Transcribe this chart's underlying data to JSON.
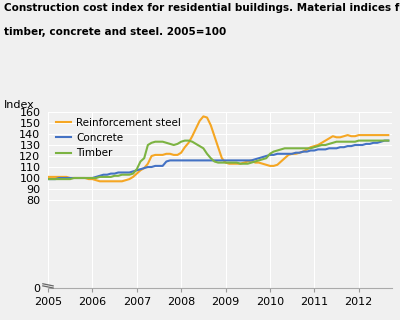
{
  "title_line1": "Construction cost index for residential buildings. Material indices for",
  "title_line2": "timber, concrete and steel. 2005=100",
  "ylabel": "Index",
  "background_color": "#f0f0f0",
  "plot_bg_color": "#f0f0f0",
  "steel_color": "#f5a623",
  "concrete_color": "#4472c4",
  "timber_color": "#7cb342",
  "ylim": [
    0,
    160
  ],
  "xlim": [
    2005.0,
    2012.75
  ],
  "steel": {
    "x": [
      2005.0,
      2005.083,
      2005.167,
      2005.25,
      2005.333,
      2005.417,
      2005.5,
      2005.583,
      2005.667,
      2005.75,
      2005.833,
      2005.917,
      2006.0,
      2006.083,
      2006.167,
      2006.25,
      2006.333,
      2006.417,
      2006.5,
      2006.583,
      2006.667,
      2006.75,
      2006.833,
      2006.917,
      2007.0,
      2007.083,
      2007.167,
      2007.25,
      2007.333,
      2007.417,
      2007.5,
      2007.583,
      2007.667,
      2007.75,
      2007.833,
      2007.917,
      2008.0,
      2008.083,
      2008.167,
      2008.25,
      2008.333,
      2008.417,
      2008.5,
      2008.583,
      2008.667,
      2008.75,
      2008.833,
      2008.917,
      2009.0,
      2009.083,
      2009.167,
      2009.25,
      2009.333,
      2009.417,
      2009.5,
      2009.583,
      2009.667,
      2009.75,
      2009.833,
      2009.917,
      2010.0,
      2010.083,
      2010.167,
      2010.25,
      2010.333,
      2010.417,
      2010.5,
      2010.583,
      2010.667,
      2010.75,
      2010.833,
      2010.917,
      2011.0,
      2011.083,
      2011.167,
      2011.25,
      2011.333,
      2011.417,
      2011.5,
      2011.583,
      2011.667,
      2011.75,
      2011.833,
      2011.917,
      2012.0,
      2012.083,
      2012.167,
      2012.25,
      2012.333,
      2012.417,
      2012.5,
      2012.583,
      2012.667
    ],
    "y": [
      101,
      101,
      101,
      101,
      101,
      101,
      100,
      100,
      100,
      100,
      100,
      99,
      99,
      98,
      97,
      97,
      97,
      97,
      97,
      97,
      97,
      98,
      99,
      101,
      104,
      107,
      109,
      113,
      120,
      121,
      121,
      121,
      122,
      122,
      121,
      121,
      123,
      128,
      132,
      138,
      145,
      152,
      156,
      155,
      148,
      138,
      128,
      118,
      114,
      113,
      113,
      113,
      113,
      114,
      115,
      116,
      114,
      114,
      113,
      112,
      111,
      111,
      112,
      115,
      118,
      121,
      122,
      122,
      123,
      124,
      126,
      128,
      129,
      130,
      132,
      134,
      136,
      138,
      137,
      137,
      138,
      139,
      138,
      138,
      139,
      139,
      139,
      139,
      139,
      139,
      139,
      139,
      139
    ]
  },
  "concrete": {
    "x": [
      2005.0,
      2005.083,
      2005.167,
      2005.25,
      2005.333,
      2005.417,
      2005.5,
      2005.583,
      2005.667,
      2005.75,
      2005.833,
      2005.917,
      2006.0,
      2006.083,
      2006.167,
      2006.25,
      2006.333,
      2006.417,
      2006.5,
      2006.583,
      2006.667,
      2006.75,
      2006.833,
      2006.917,
      2007.0,
      2007.083,
      2007.167,
      2007.25,
      2007.333,
      2007.417,
      2007.5,
      2007.583,
      2007.667,
      2007.75,
      2007.833,
      2007.917,
      2008.0,
      2008.083,
      2008.167,
      2008.25,
      2008.333,
      2008.417,
      2008.5,
      2008.583,
      2008.667,
      2008.75,
      2008.833,
      2008.917,
      2009.0,
      2009.083,
      2009.167,
      2009.25,
      2009.333,
      2009.417,
      2009.5,
      2009.583,
      2009.667,
      2009.75,
      2009.833,
      2009.917,
      2010.0,
      2010.083,
      2010.167,
      2010.25,
      2010.333,
      2010.417,
      2010.5,
      2010.583,
      2010.667,
      2010.75,
      2010.833,
      2010.917,
      2011.0,
      2011.083,
      2011.167,
      2011.25,
      2011.333,
      2011.417,
      2011.5,
      2011.583,
      2011.667,
      2011.75,
      2011.833,
      2011.917,
      2012.0,
      2012.083,
      2012.167,
      2012.25,
      2012.333,
      2012.417,
      2012.5,
      2012.583,
      2012.667
    ],
    "y": [
      99,
      99,
      99,
      100,
      100,
      100,
      100,
      100,
      100,
      100,
      100,
      100,
      100,
      101,
      102,
      103,
      103,
      104,
      104,
      105,
      105,
      105,
      105,
      106,
      107,
      108,
      109,
      110,
      110,
      111,
      111,
      111,
      115,
      116,
      116,
      116,
      116,
      116,
      116,
      116,
      116,
      116,
      116,
      116,
      116,
      116,
      116,
      116,
      116,
      116,
      116,
      116,
      116,
      116,
      116,
      116,
      117,
      118,
      119,
      120,
      121,
      121,
      122,
      122,
      122,
      122,
      122,
      123,
      123,
      124,
      124,
      125,
      125,
      126,
      126,
      126,
      127,
      127,
      127,
      128,
      128,
      129,
      129,
      130,
      130,
      130,
      131,
      131,
      132,
      132,
      133,
      134,
      134
    ]
  },
  "timber": {
    "x": [
      2005.0,
      2005.083,
      2005.167,
      2005.25,
      2005.333,
      2005.417,
      2005.5,
      2005.583,
      2005.667,
      2005.75,
      2005.833,
      2005.917,
      2006.0,
      2006.083,
      2006.167,
      2006.25,
      2006.333,
      2006.417,
      2006.5,
      2006.583,
      2006.667,
      2006.75,
      2006.833,
      2006.917,
      2007.0,
      2007.083,
      2007.167,
      2007.25,
      2007.333,
      2007.417,
      2007.5,
      2007.583,
      2007.667,
      2007.75,
      2007.833,
      2007.917,
      2008.0,
      2008.083,
      2008.167,
      2008.25,
      2008.333,
      2008.417,
      2008.5,
      2008.583,
      2008.667,
      2008.75,
      2008.833,
      2008.917,
      2009.0,
      2009.083,
      2009.167,
      2009.25,
      2009.333,
      2009.417,
      2009.5,
      2009.583,
      2009.667,
      2009.75,
      2009.833,
      2009.917,
      2010.0,
      2010.083,
      2010.167,
      2010.25,
      2010.333,
      2010.417,
      2010.5,
      2010.583,
      2010.667,
      2010.75,
      2010.833,
      2010.917,
      2011.0,
      2011.083,
      2011.167,
      2011.25,
      2011.333,
      2011.417,
      2011.5,
      2011.583,
      2011.667,
      2011.75,
      2011.833,
      2011.917,
      2012.0,
      2012.083,
      2012.167,
      2012.25,
      2012.333,
      2012.417,
      2012.5,
      2012.583,
      2012.667
    ],
    "y": [
      99,
      99,
      99,
      99,
      99,
      99,
      99,
      100,
      100,
      100,
      100,
      100,
      100,
      100,
      101,
      101,
      101,
      101,
      102,
      102,
      103,
      103,
      103,
      104,
      108,
      115,
      118,
      130,
      132,
      133,
      133,
      133,
      132,
      131,
      130,
      131,
      133,
      134,
      134,
      133,
      131,
      129,
      127,
      122,
      118,
      115,
      114,
      114,
      114,
      114,
      114,
      114,
      113,
      113,
      113,
      114,
      115,
      116,
      117,
      118,
      122,
      124,
      125,
      126,
      127,
      127,
      127,
      127,
      127,
      127,
      127,
      127,
      128,
      129,
      130,
      130,
      131,
      132,
      133,
      133,
      133,
      133,
      133,
      133,
      134,
      134,
      134,
      134,
      134,
      134,
      134,
      134,
      134
    ]
  },
  "legend": [
    {
      "label": "Reinforcement steel",
      "color": "#f5a623"
    },
    {
      "label": "Concrete",
      "color": "#4472c4"
    },
    {
      "label": "Timber",
      "color": "#7cb342"
    }
  ],
  "xtick_years": [
    2005,
    2006,
    2007,
    2008,
    2009,
    2010,
    2011,
    2012
  ],
  "yticks": [
    0,
    80,
    90,
    100,
    110,
    120,
    130,
    140,
    150,
    160
  ],
  "line_width": 1.5,
  "title_fontsize": 7.5,
  "tick_fontsize": 8,
  "ylabel_fontsize": 8,
  "legend_fontsize": 7.5
}
